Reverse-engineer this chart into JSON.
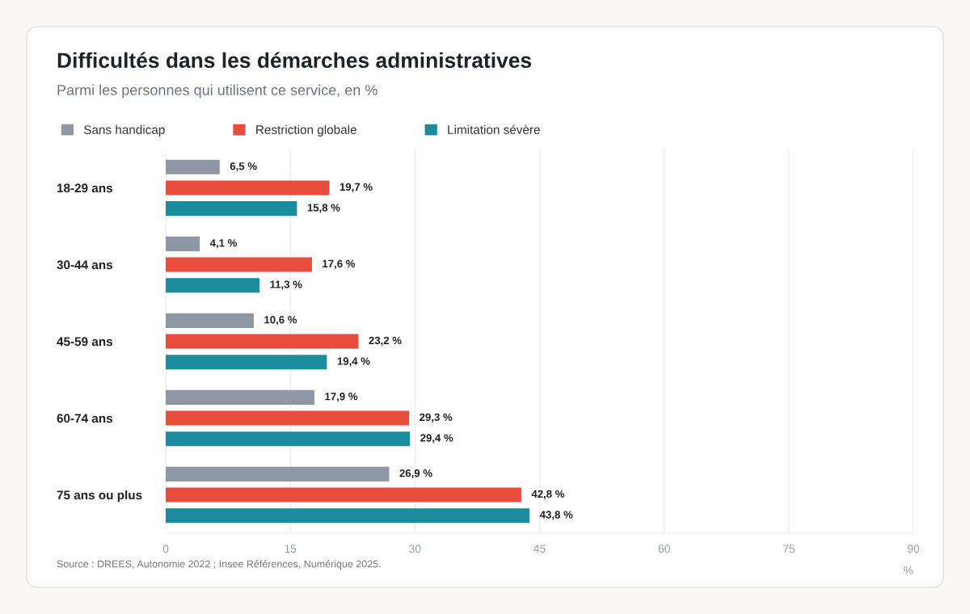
{
  "chart_data": {
    "type": "bar",
    "orientation": "horizontal",
    "title": "Difficultés dans les démarches administratives",
    "subtitle": "Parmi les personnes qui utilisent ce service, en %",
    "xlabel": "%",
    "categories": [
      "18-29 ans",
      "30-44 ans",
      "45-59 ans",
      "60-74 ans",
      "75 ans ou plus"
    ],
    "series": [
      {
        "name": "Sans handicap",
        "color": "#8e97a3",
        "values": [
          6.5,
          4.1,
          10.6,
          17.9,
          26.9
        ],
        "value_labels": [
          "6,5 %",
          "4,1 %",
          "10,6 %",
          "17,9 %",
          "26,9 %"
        ]
      },
      {
        "name": "Restriction globale",
        "color": "#e84c3d",
        "values": [
          19.7,
          17.6,
          23.2,
          29.3,
          42.8
        ],
        "value_labels": [
          "19,7 %",
          "17,6 %",
          "23,2 %",
          "29,3 %",
          "42,8 %"
        ]
      },
      {
        "name": "Limitation sévère",
        "color": "#1a8c9e",
        "values": [
          15.8,
          11.3,
          19.4,
          29.4,
          43.8
        ],
        "value_labels": [
          "15,8 %",
          "11,3 %",
          "19,4 %",
          "29,4 %",
          "43,8 %"
        ]
      }
    ],
    "xlim": [
      0,
      90
    ],
    "xticks": [
      0,
      15,
      30,
      45,
      60,
      75,
      90
    ],
    "grid": "x",
    "legend": "top left",
    "annotations": [
      "Source : DREES, Autonomie 2022 ; Insee Références, Numérique 2025."
    ]
  }
}
